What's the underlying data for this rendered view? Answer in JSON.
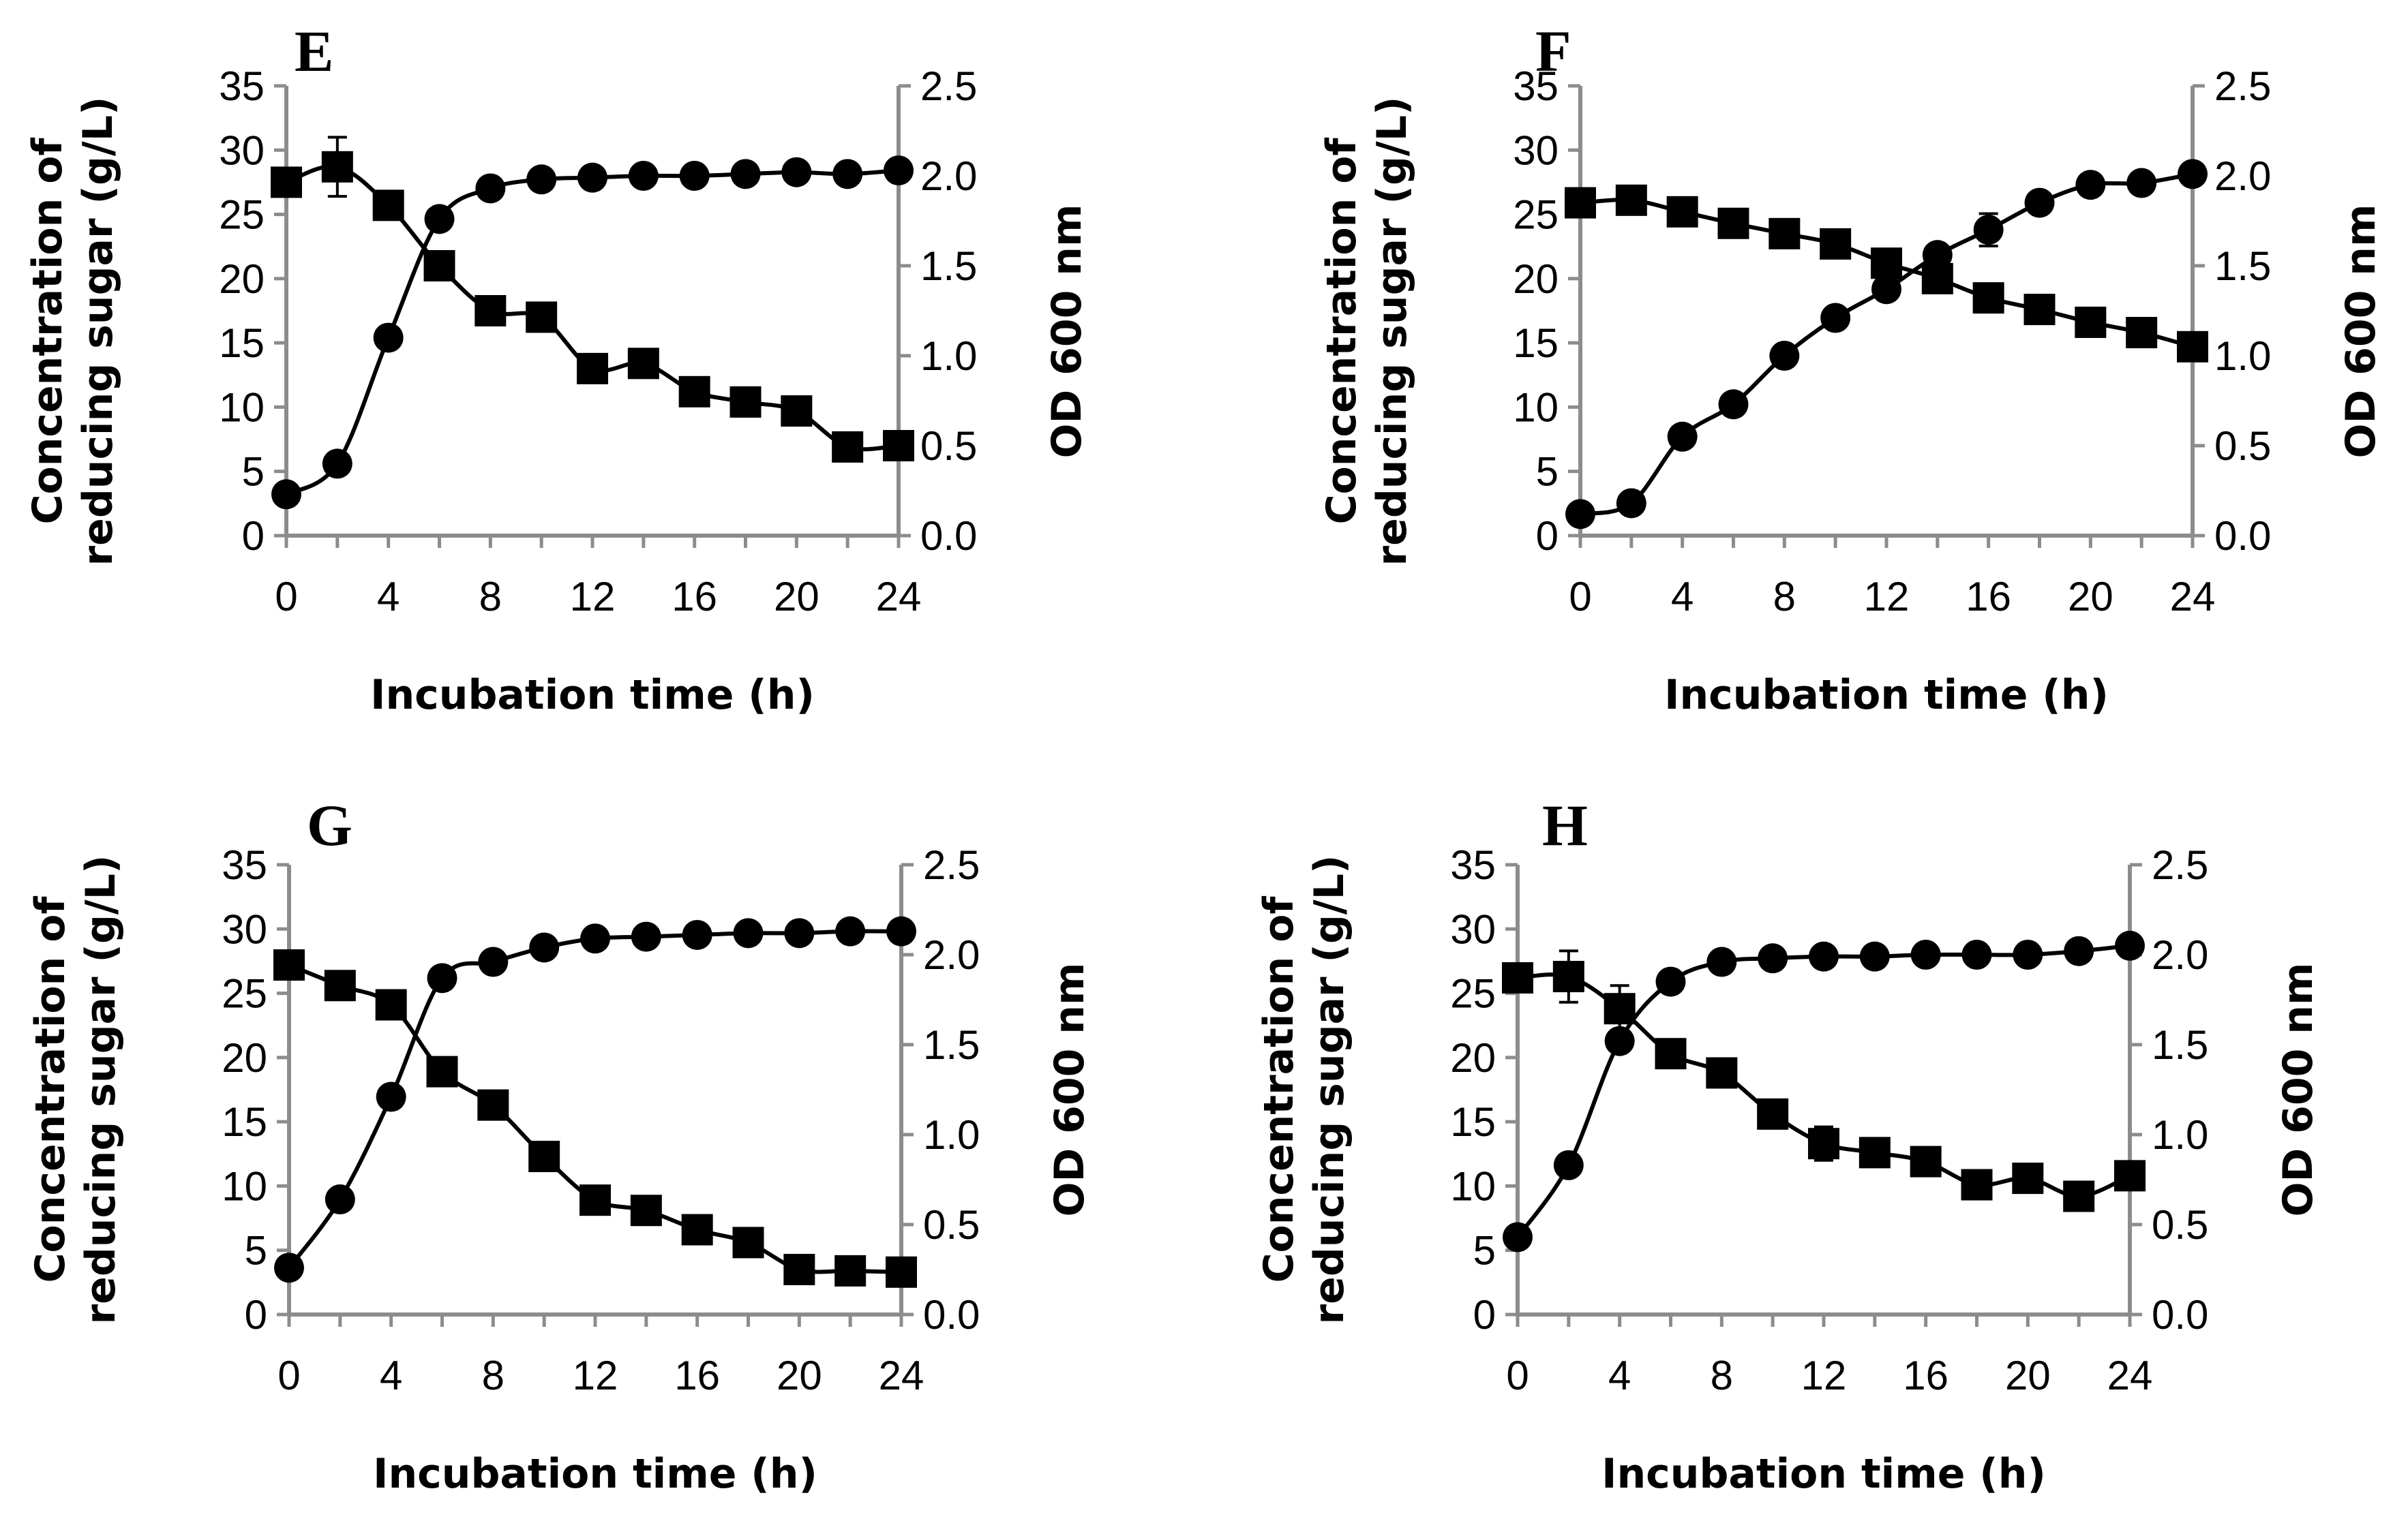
{
  "colors": {
    "axis": "#8c8c8c",
    "series": "#000000",
    "background": "#ffffff"
  },
  "chart_data": [
    {
      "type": "line",
      "panel": "E",
      "xlabel": "Incubation time (h)",
      "ylabel_lines": [
        "Concentration of",
        "reducing sugar (g/L)"
      ],
      "y2label": "OD 600 nm",
      "xlim": [
        0,
        24
      ],
      "ylim": [
        0,
        35
      ],
      "y2lim": [
        0,
        2.5
      ],
      "x_ticks": [
        "0",
        "4",
        "8",
        "12",
        "16",
        "20",
        "24"
      ],
      "y_ticks": [
        "0",
        "5",
        "10",
        "15",
        "20",
        "25",
        "30",
        "35"
      ],
      "y2_ticks": [
        "0.0",
        "0.5",
        "1.0",
        "1.5",
        "2.0",
        "2.5"
      ],
      "x": [
        0,
        2,
        4,
        6,
        8,
        10,
        12,
        14,
        16,
        18,
        20,
        22,
        24
      ],
      "series": [
        {
          "name": "Reducing sugar",
          "marker": "square",
          "axis": "left",
          "values": [
            27.5,
            28.7,
            25.7,
            21.0,
            17.5,
            17.0,
            13.0,
            13.4,
            11.2,
            10.4,
            9.7,
            6.9,
            7.0
          ],
          "error": [
            0,
            2.3,
            0,
            0,
            0,
            0,
            0,
            0,
            0,
            0,
            0,
            0,
            0
          ]
        },
        {
          "name": "OD 600 nm",
          "marker": "circle",
          "axis": "right",
          "values": [
            0.23,
            0.4,
            1.1,
            1.76,
            1.93,
            1.98,
            1.99,
            2.0,
            2.0,
            2.01,
            2.02,
            2.01,
            2.03
          ]
        }
      ]
    },
    {
      "type": "line",
      "panel": "F",
      "xlabel": "Incubation time (h)",
      "ylabel_lines": [
        "Concentration of",
        "reducing sugar (g/L)"
      ],
      "y2label": "OD 600 nm",
      "xlim": [
        0,
        24
      ],
      "ylim": [
        0,
        35
      ],
      "y2lim": [
        0,
        2.5
      ],
      "x_ticks": [
        "0",
        "4",
        "8",
        "12",
        "16",
        "20",
        "24"
      ],
      "y_ticks": [
        "0",
        "5",
        "10",
        "15",
        "20",
        "25",
        "30",
        "35"
      ],
      "y2_ticks": [
        "0.0",
        "0.5",
        "1.0",
        "1.5",
        "2.0",
        "2.5"
      ],
      "x": [
        0,
        2,
        4,
        6,
        8,
        10,
        12,
        14,
        16,
        18,
        20,
        22,
        24
      ],
      "series": [
        {
          "name": "Reducing sugar",
          "marker": "square",
          "axis": "left",
          "values": [
            25.9,
            26.1,
            25.2,
            24.3,
            23.5,
            22.7,
            21.2,
            20.0,
            18.5,
            17.6,
            16.6,
            15.8,
            14.7
          ],
          "error": [
            0,
            0,
            0,
            0,
            0,
            0,
            0,
            0,
            0,
            0,
            0,
            0,
            0
          ]
        },
        {
          "name": "OD 600 nm",
          "marker": "circle",
          "axis": "right",
          "values": [
            0.12,
            0.18,
            0.55,
            0.73,
            1.0,
            1.21,
            1.37,
            1.56,
            1.7,
            1.85,
            1.95,
            1.96,
            2.01
          ],
          "error": [
            0,
            0,
            0,
            0,
            0,
            0,
            0,
            0,
            0.09,
            0,
            0,
            0,
            0
          ]
        }
      ]
    },
    {
      "type": "line",
      "panel": "G",
      "xlabel": "Incubation time (h)",
      "ylabel_lines": [
        "Concentration of",
        "reducing sugar (g/L)"
      ],
      "y2label": "OD 600 nm",
      "xlim": [
        0,
        24
      ],
      "ylim": [
        0,
        35
      ],
      "y2lim": [
        0,
        2.5
      ],
      "x_ticks": [
        "0",
        "4",
        "8",
        "12",
        "16",
        "20",
        "24"
      ],
      "y_ticks": [
        "0",
        "5",
        "10",
        "15",
        "20",
        "25",
        "30",
        "35"
      ],
      "y2_ticks": [
        "0.0",
        "0.5",
        "1.0",
        "1.5",
        "2.0",
        "2.5"
      ],
      "x": [
        0,
        2,
        4,
        6,
        8,
        10,
        12,
        14,
        16,
        18,
        20,
        22,
        24
      ],
      "series": [
        {
          "name": "Reducing sugar",
          "marker": "square",
          "axis": "left",
          "values": [
            27.2,
            25.6,
            24.1,
            18.9,
            16.3,
            12.3,
            8.9,
            8.1,
            6.6,
            5.6,
            3.5,
            3.4,
            3.3
          ],
          "error": [
            0,
            0,
            0,
            0,
            0,
            0,
            0,
            0,
            0,
            0,
            0,
            0,
            0
          ]
        },
        {
          "name": "OD 600 nm",
          "marker": "circle",
          "axis": "right",
          "values": [
            0.26,
            0.64,
            1.21,
            1.87,
            1.96,
            2.04,
            2.09,
            2.1,
            2.11,
            2.12,
            2.12,
            2.13,
            2.13
          ]
        }
      ]
    },
    {
      "type": "line",
      "panel": "H",
      "xlabel": "Incubation time (h)",
      "ylabel_lines": [
        "Concentration of",
        "reducing sugar (g/L)"
      ],
      "y2label": "OD 600 nm",
      "xlim": [
        0,
        24
      ],
      "ylim": [
        0,
        35
      ],
      "y2lim": [
        0,
        2.5
      ],
      "x_ticks": [
        "0",
        "4",
        "8",
        "12",
        "16",
        "20",
        "24"
      ],
      "y_ticks": [
        "0",
        "5",
        "10",
        "15",
        "20",
        "25",
        "30",
        "35"
      ],
      "y2_ticks": [
        "0.0",
        "0.5",
        "1.0",
        "1.5",
        "2.0",
        "2.5"
      ],
      "x": [
        0,
        2,
        4,
        6,
        8,
        10,
        12,
        14,
        16,
        18,
        20,
        22,
        24
      ],
      "series": [
        {
          "name": "Reducing sugar",
          "marker": "square",
          "axis": "left",
          "values": [
            26.2,
            26.3,
            23.8,
            20.3,
            18.8,
            15.6,
            13.3,
            12.6,
            11.9,
            10.1,
            10.6,
            9.2,
            10.8
          ],
          "error": [
            0,
            2.0,
            1.8,
            0,
            0,
            0,
            1.3,
            0,
            0,
            0,
            0,
            0,
            0
          ]
        },
        {
          "name": "OD 600 nm",
          "marker": "circle",
          "axis": "right",
          "values": [
            0.43,
            0.83,
            1.52,
            1.85,
            1.96,
            1.98,
            1.99,
            1.99,
            2.0,
            2.0,
            2.0,
            2.02,
            2.05
          ]
        }
      ]
    }
  ]
}
